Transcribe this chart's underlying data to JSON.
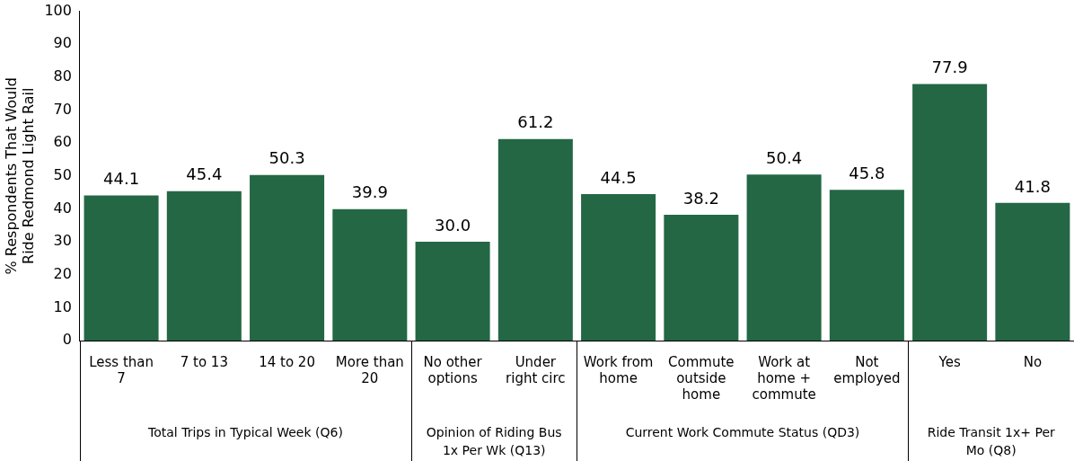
{
  "chart_data": {
    "type": "bar",
    "ylabel": "% Respondents That Would Ride Redmond Light Rail",
    "categories": [
      "Less than 7",
      "7 to 13",
      "14 to 20",
      "More than 20",
      "No other options",
      "Under right circ",
      "Work from home",
      "Commute outside home",
      "Work at home + commute",
      "Not employed",
      "Yes",
      "No"
    ],
    "values": [
      44.1,
      45.4,
      50.3,
      39.9,
      30.0,
      61.2,
      44.5,
      38.2,
      50.4,
      45.8,
      77.9,
      41.8
    ],
    "value_labels": [
      "44.1",
      "45.4",
      "50.3",
      "39.9",
      "30.0",
      "61.2",
      "44.5",
      "38.2",
      "50.4",
      "45.8",
      "77.9",
      "41.8"
    ],
    "color": "#236744",
    "ylim": [
      0,
      100
    ],
    "yticks": [
      0,
      10,
      20,
      30,
      40,
      50,
      60,
      70,
      80,
      90,
      100
    ],
    "grid": false,
    "legend": false,
    "annotations": [
      "Total Trips in Typical Week (Q6)",
      "Opinion of Riding Bus 1x Per Wk (Q13)",
      "Current Work Commute Status (QD3)",
      "Ride Transit 1x+ Per Mo (Q8)"
    ]
  }
}
